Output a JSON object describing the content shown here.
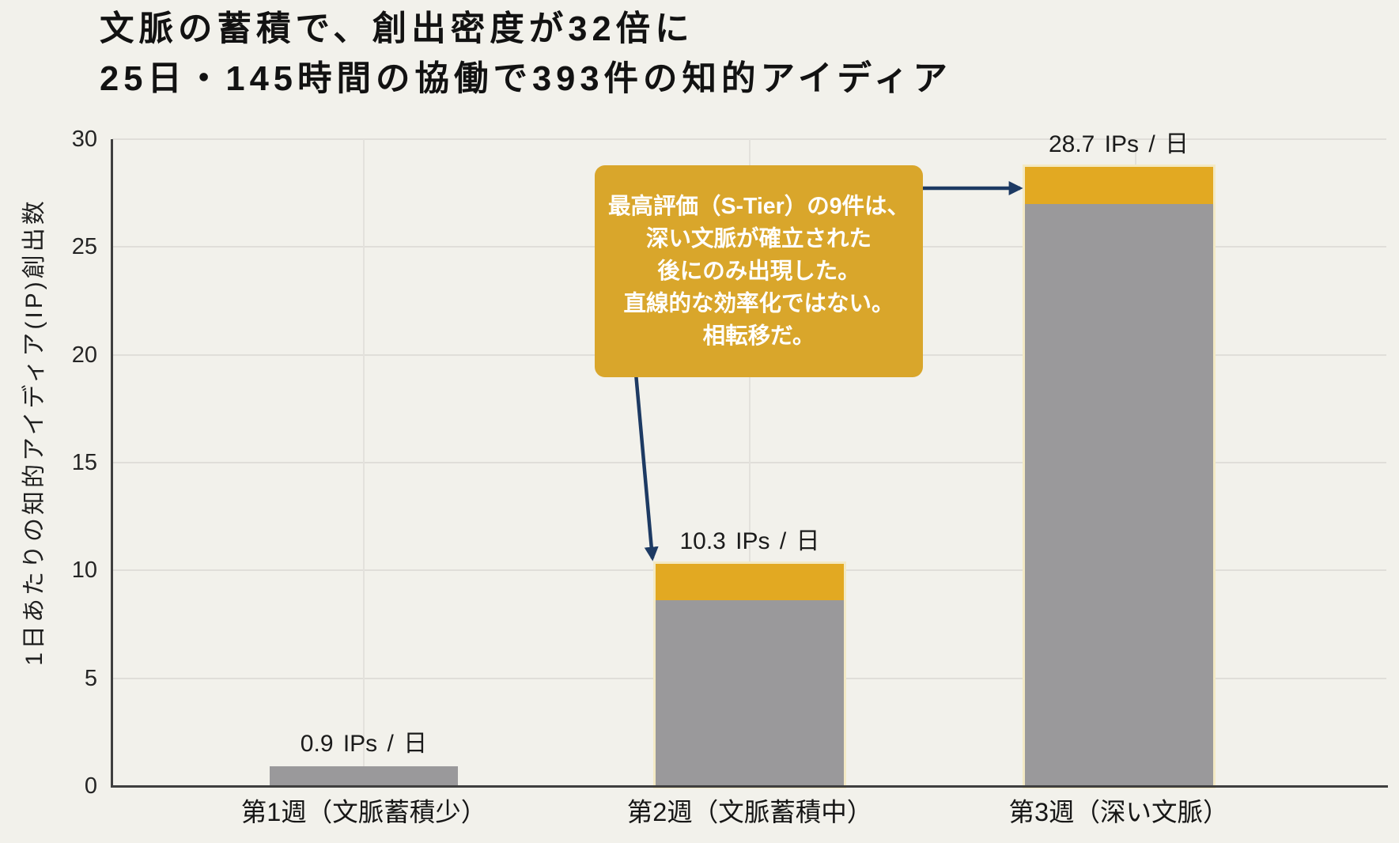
{
  "title": {
    "line1": "文脈の蓄積で、創出密度が32倍に",
    "line2": "25日・145時間の協働で393件の知的アイディア"
  },
  "colors": {
    "background": "#f2f1eb",
    "bar_gray": "#9a999b",
    "bar_gold": "#e2a922",
    "bar_outline": "#f3e9c4",
    "callout_bg": "#d9a62b",
    "callout_text": "#ffffff",
    "arrow": "#1d3a63",
    "axis": "#3f3f3f",
    "gridline": "#e0ded9"
  },
  "chart_data": {
    "type": "bar",
    "stacked": true,
    "ylabel": "1日あたりの知的アイディア(IP)創出数",
    "ylim": [
      0,
      30
    ],
    "yticks": [
      0,
      5,
      10,
      15,
      20,
      25,
      30
    ],
    "categories": [
      "第1週（文脈蓄積少）",
      "第2週（文脈蓄積中）",
      "第3週（深い文脈）"
    ],
    "series": [
      {
        "name": "base",
        "color_key": "bar_gray",
        "values": [
          0.9,
          8.6,
          27.0
        ]
      },
      {
        "name": "s_tier_cap",
        "color_key": "bar_gold",
        "values": [
          0,
          1.7,
          1.7
        ]
      }
    ],
    "totals": [
      0.9,
      10.3,
      28.7
    ],
    "bar_labels": [
      "0.9 IPs / 日",
      "10.3 IPs / 日",
      "28.7 IPs / 日"
    ],
    "grid": true,
    "legend": false
  },
  "callout": {
    "lines": [
      "最高評価（S-Tier）の9件は、",
      "深い文脈が確立された",
      "後にのみ出現した。",
      "直線的な効率化ではない。",
      "相転移だ。"
    ]
  }
}
